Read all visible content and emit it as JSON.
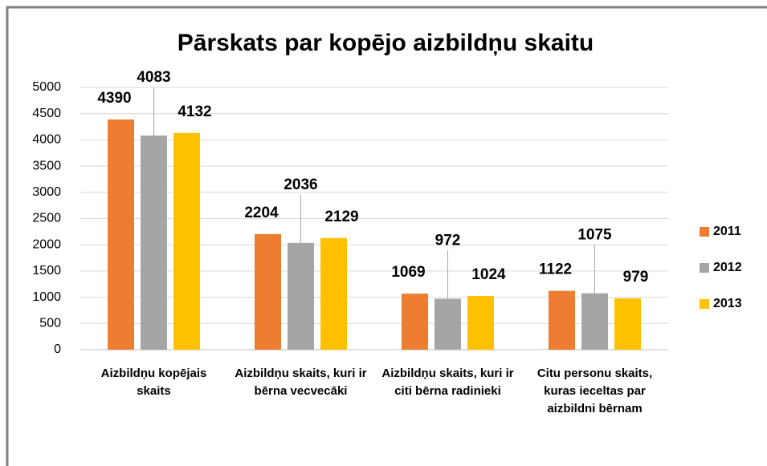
{
  "chart_data": {
    "type": "bar",
    "title": "Pārskats par kopējo aizbildņu skaitu",
    "categories": [
      "Aizbildņu kopējais skaits",
      "Aizbildņu skaits, kuri ir bērna vecvecāki",
      "Aizbildņu skaits, kuri ir citi bērna radinieki",
      "Citu personu skaits, kuras ieceltas par aizbildni bērnam"
    ],
    "series": [
      {
        "name": "2011",
        "color": "#ed7d31",
        "values": [
          4390,
          2204,
          1069,
          1122
        ]
      },
      {
        "name": "2012",
        "color": "#a5a5a5",
        "values": [
          4083,
          2036,
          972,
          1075
        ]
      },
      {
        "name": "2013",
        "color": "#ffc000",
        "values": [
          4132,
          2129,
          1024,
          979
        ]
      }
    ],
    "ylim": [
      0,
      5000
    ],
    "yticks": [
      0,
      500,
      1000,
      1500,
      2000,
      2500,
      3000,
      3500,
      4000,
      4500,
      5000
    ],
    "grid": true,
    "legend": "right"
  }
}
